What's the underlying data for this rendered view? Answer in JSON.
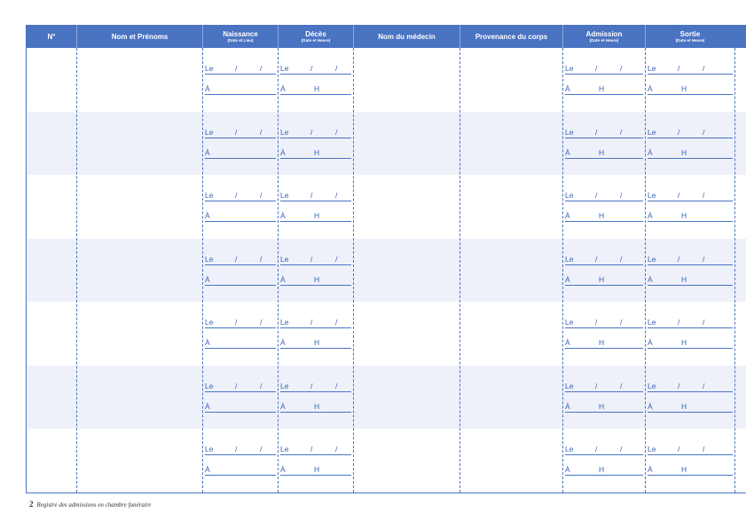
{
  "table": {
    "columns": [
      {
        "title": "N°",
        "subtitle": ""
      },
      {
        "title": "Nom et Prénoms",
        "subtitle": ""
      },
      {
        "title": "Naissance",
        "subtitle": "(Date et Lieu)"
      },
      {
        "title": "Décès",
        "subtitle": "(Date et Heure)"
      },
      {
        "title": "Nom du médecin",
        "subtitle": ""
      },
      {
        "title": "Provenance du corps",
        "subtitle": ""
      },
      {
        "title": "Admission",
        "subtitle": "(Date et Heure)"
      },
      {
        "title": "Sortie",
        "subtitle": "(Date et Heure)"
      }
    ],
    "row_count": 7,
    "date_prefix": "Le",
    "date_separator": "/",
    "place_prefix": "À",
    "hour_mark": "H"
  },
  "footer": {
    "page_number": "2",
    "text": "Registre des admissions en chambre funéraire"
  },
  "colors": {
    "header_bg": "#4a73c2",
    "line": "#4a73c2",
    "text_blue": "#3a63b5",
    "row_shade": "#eef1fa"
  }
}
